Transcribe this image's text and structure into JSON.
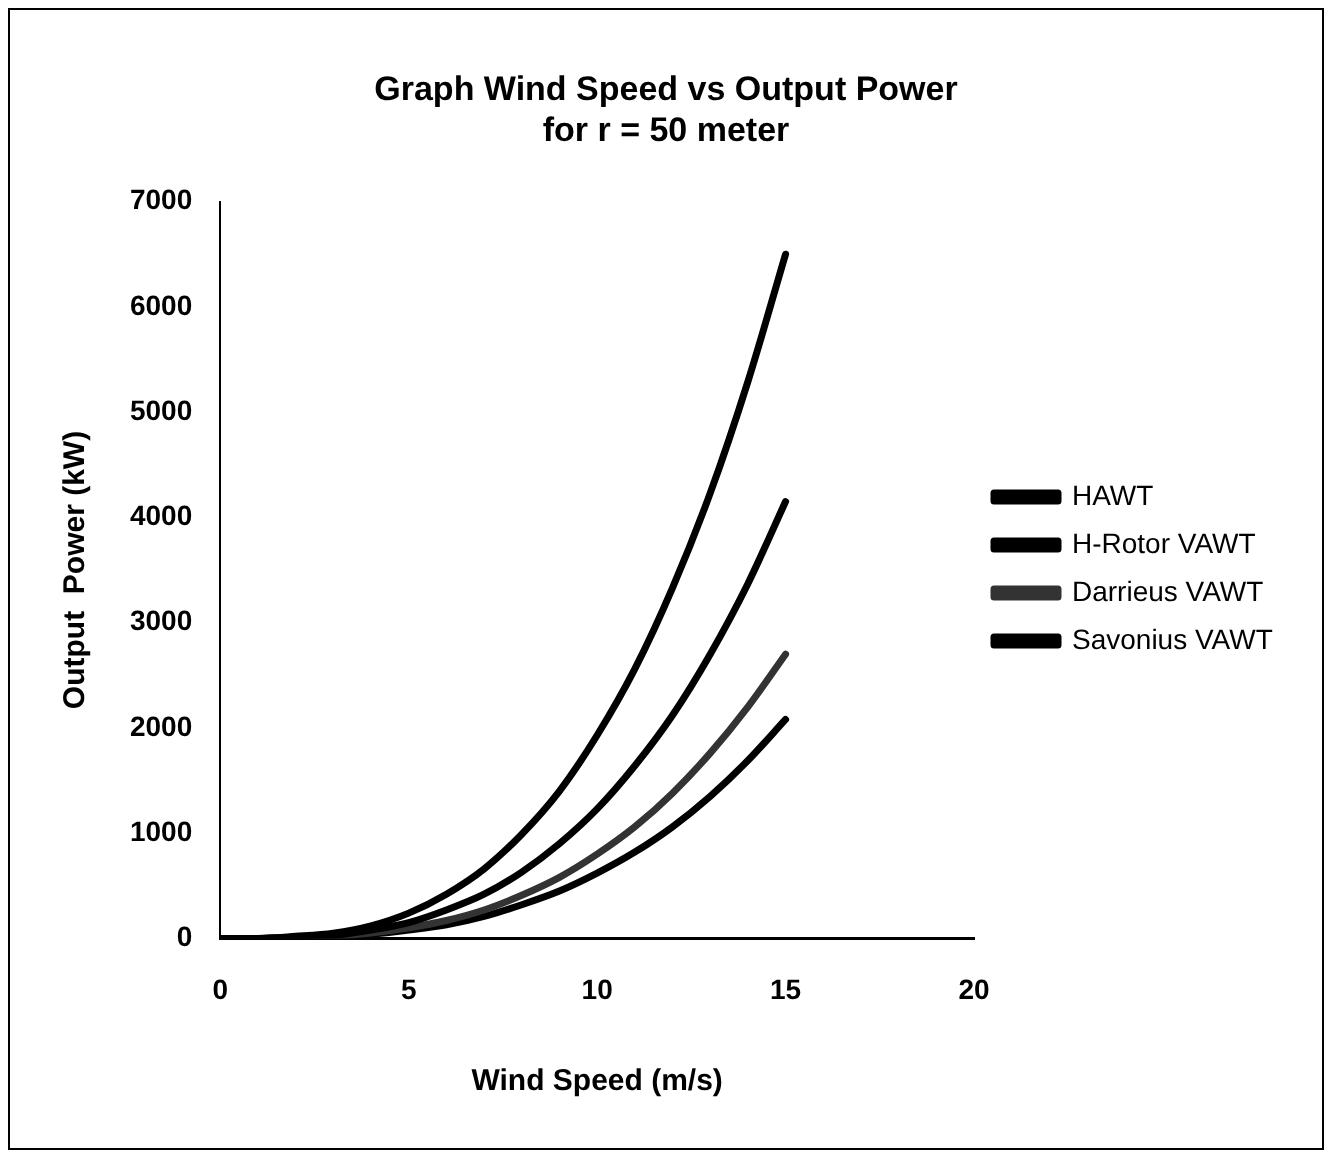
{
  "chart_data": {
    "type": "line",
    "title": "Graph Wind Speed vs Output Power\nfor r = 50 meter",
    "xlabel": "Wind Speed (m/s)",
    "ylabel": "Output  Power (kW)",
    "x": [
      0,
      1,
      2,
      3,
      4,
      5,
      6,
      7,
      8,
      9,
      10,
      11,
      12,
      13,
      14,
      15
    ],
    "series": [
      {
        "name": "HAWT",
        "color": "#000000",
        "values": [
          0,
          0,
          20,
          50,
          120,
          240,
          420,
          660,
          990,
          1400,
          1930,
          2560,
          3330,
          4230,
          5290,
          6500
        ]
      },
      {
        "name": "H-Rotor VAWT",
        "color": "#000000",
        "values": [
          0,
          0,
          10,
          30,
          80,
          150,
          270,
          420,
          630,
          900,
          1230,
          1640,
          2120,
          2700,
          3370,
          4150
        ]
      },
      {
        "name": "Darrieus VAWT",
        "color": "#333333",
        "values": [
          0,
          0,
          10,
          20,
          50,
          100,
          170,
          270,
          410,
          580,
          800,
          1060,
          1380,
          1760,
          2200,
          2700
        ]
      },
      {
        "name": "Savonius VAWT",
        "color": "#000000",
        "values": [
          0,
          0,
          0,
          20,
          40,
          80,
          130,
          210,
          320,
          450,
          620,
          820,
          1060,
          1350,
          1690,
          2080
        ]
      }
    ],
    "xlim": [
      0,
      20
    ],
    "xticks": [
      0,
      5,
      10,
      15,
      20
    ],
    "ylim": [
      0,
      7000
    ],
    "yticks": [
      0,
      1000,
      2000,
      3000,
      4000,
      5000,
      6000,
      7000
    ],
    "grid": false,
    "legend": "right",
    "marker": "none",
    "line_style": "solid"
  }
}
